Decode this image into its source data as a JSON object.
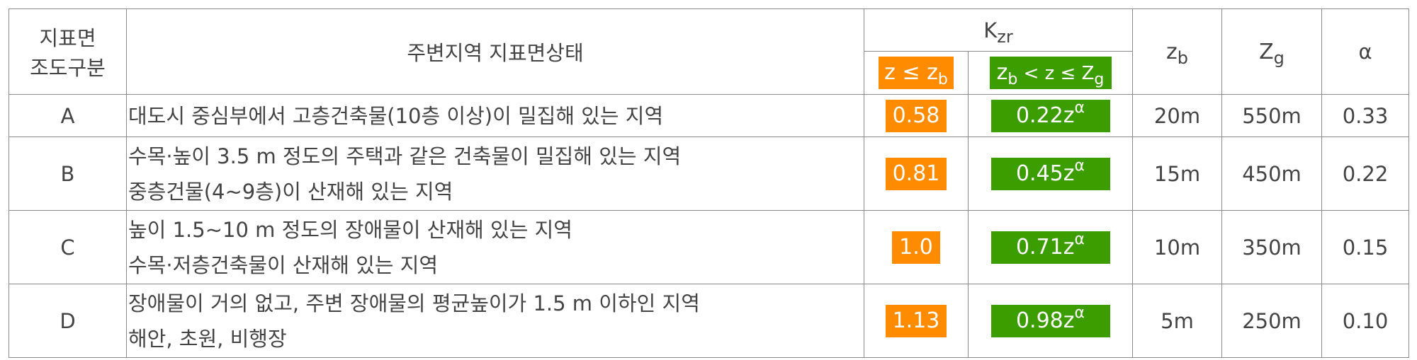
{
  "header": {
    "class_label_line1": "지표면",
    "class_label_line2": "조도구분",
    "condition_label": "주변지역 지표면상태",
    "kzr_main": "K",
    "kzr_sub": "zr",
    "z_le_zb": {
      "left": "z ≤ z",
      "sub": "b"
    },
    "zb_lt_z_le_zg": {
      "left": "z",
      "left_sub": "b",
      "mid": " < z ≤ Z",
      "right_sub": "g"
    },
    "zb": {
      "main": "z",
      "sub": "b"
    },
    "zg": {
      "main": "Z",
      "sub": "g"
    },
    "alpha": "α"
  },
  "rows": [
    {
      "class": "A",
      "lines": [
        "대도시 중심부에서 고층건축물(10층 이상)이 밀집해 있는 지역"
      ],
      "k1": "0.58",
      "k2": "0.22z",
      "k2_exp": "α",
      "zb": "20m",
      "zg": "550m",
      "alpha": "0.33"
    },
    {
      "class": "B",
      "lines": [
        "수목·높이 3.5 m 정도의 주택과 같은 건축물이 밀집해 있는 지역",
        "중층건물(4~9층)이 산재해 있는 지역"
      ],
      "k1": "0.81",
      "k2": "0.45z",
      "k2_exp": "α",
      "zb": "15m",
      "zg": "450m",
      "alpha": "0.22"
    },
    {
      "class": "C",
      "lines": [
        "높이 1.5~10 m 정도의 장애물이 산재해 있는 지역",
        "수목·저층건축물이 산재해 있는 지역"
      ],
      "k1": "1.0",
      "k2": "0.71z",
      "k2_exp": "α",
      "zb": "10m",
      "zg": "350m",
      "alpha": "0.15"
    },
    {
      "class": "D",
      "lines": [
        "장애물이 거의 없고, 주변 장애물의 평균높이가 1.5 m 이하인 지역",
        "해안, 초원, 비행장"
      ],
      "k1": "1.13",
      "k2": "0.98z",
      "k2_exp": "α",
      "zb": "5m",
      "zg": "250m",
      "alpha": "0.10"
    }
  ],
  "colors": {
    "orange": "#ff8c00",
    "green": "#3c9d00",
    "border": "#8a8a8a",
    "text": "#444444"
  }
}
